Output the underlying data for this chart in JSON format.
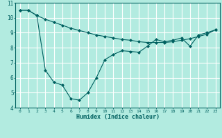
{
  "xlabel": "Humidex (Indice chaleur)",
  "bg_color": "#b2ebe0",
  "grid_color": "#c8f0e8",
  "line_color": "#006060",
  "xlim": [
    -0.5,
    23.5
  ],
  "ylim": [
    4,
    11
  ],
  "xticks": [
    0,
    1,
    2,
    3,
    4,
    5,
    6,
    7,
    8,
    9,
    10,
    11,
    12,
    13,
    14,
    15,
    16,
    17,
    18,
    19,
    20,
    21,
    22,
    23
  ],
  "yticks": [
    4,
    5,
    6,
    7,
    8,
    9,
    10,
    11
  ],
  "series1_x": [
    0,
    1,
    2,
    3,
    4,
    5,
    6,
    7,
    8,
    9,
    10,
    11,
    12,
    13,
    14,
    15,
    16,
    17,
    18,
    19,
    20,
    21,
    22,
    23
  ],
  "series1_y": [
    10.5,
    10.5,
    10.15,
    9.9,
    9.7,
    9.5,
    9.3,
    9.15,
    9.0,
    8.85,
    8.75,
    8.65,
    8.55,
    8.5,
    8.4,
    8.35,
    8.35,
    8.35,
    8.4,
    8.5,
    8.6,
    8.75,
    8.9,
    9.2
  ],
  "series2_x": [
    0,
    1,
    2,
    3,
    4,
    5,
    6,
    7,
    8,
    9,
    10,
    11,
    12,
    13,
    14,
    15,
    16,
    17,
    18,
    19,
    20,
    21,
    22,
    23
  ],
  "series2_y": [
    10.5,
    10.5,
    10.15,
    6.5,
    5.7,
    5.5,
    4.6,
    4.5,
    5.0,
    6.0,
    7.2,
    7.55,
    7.8,
    7.75,
    7.7,
    8.1,
    8.55,
    8.4,
    8.5,
    8.65,
    8.1,
    8.85,
    9.0,
    9.2
  ]
}
